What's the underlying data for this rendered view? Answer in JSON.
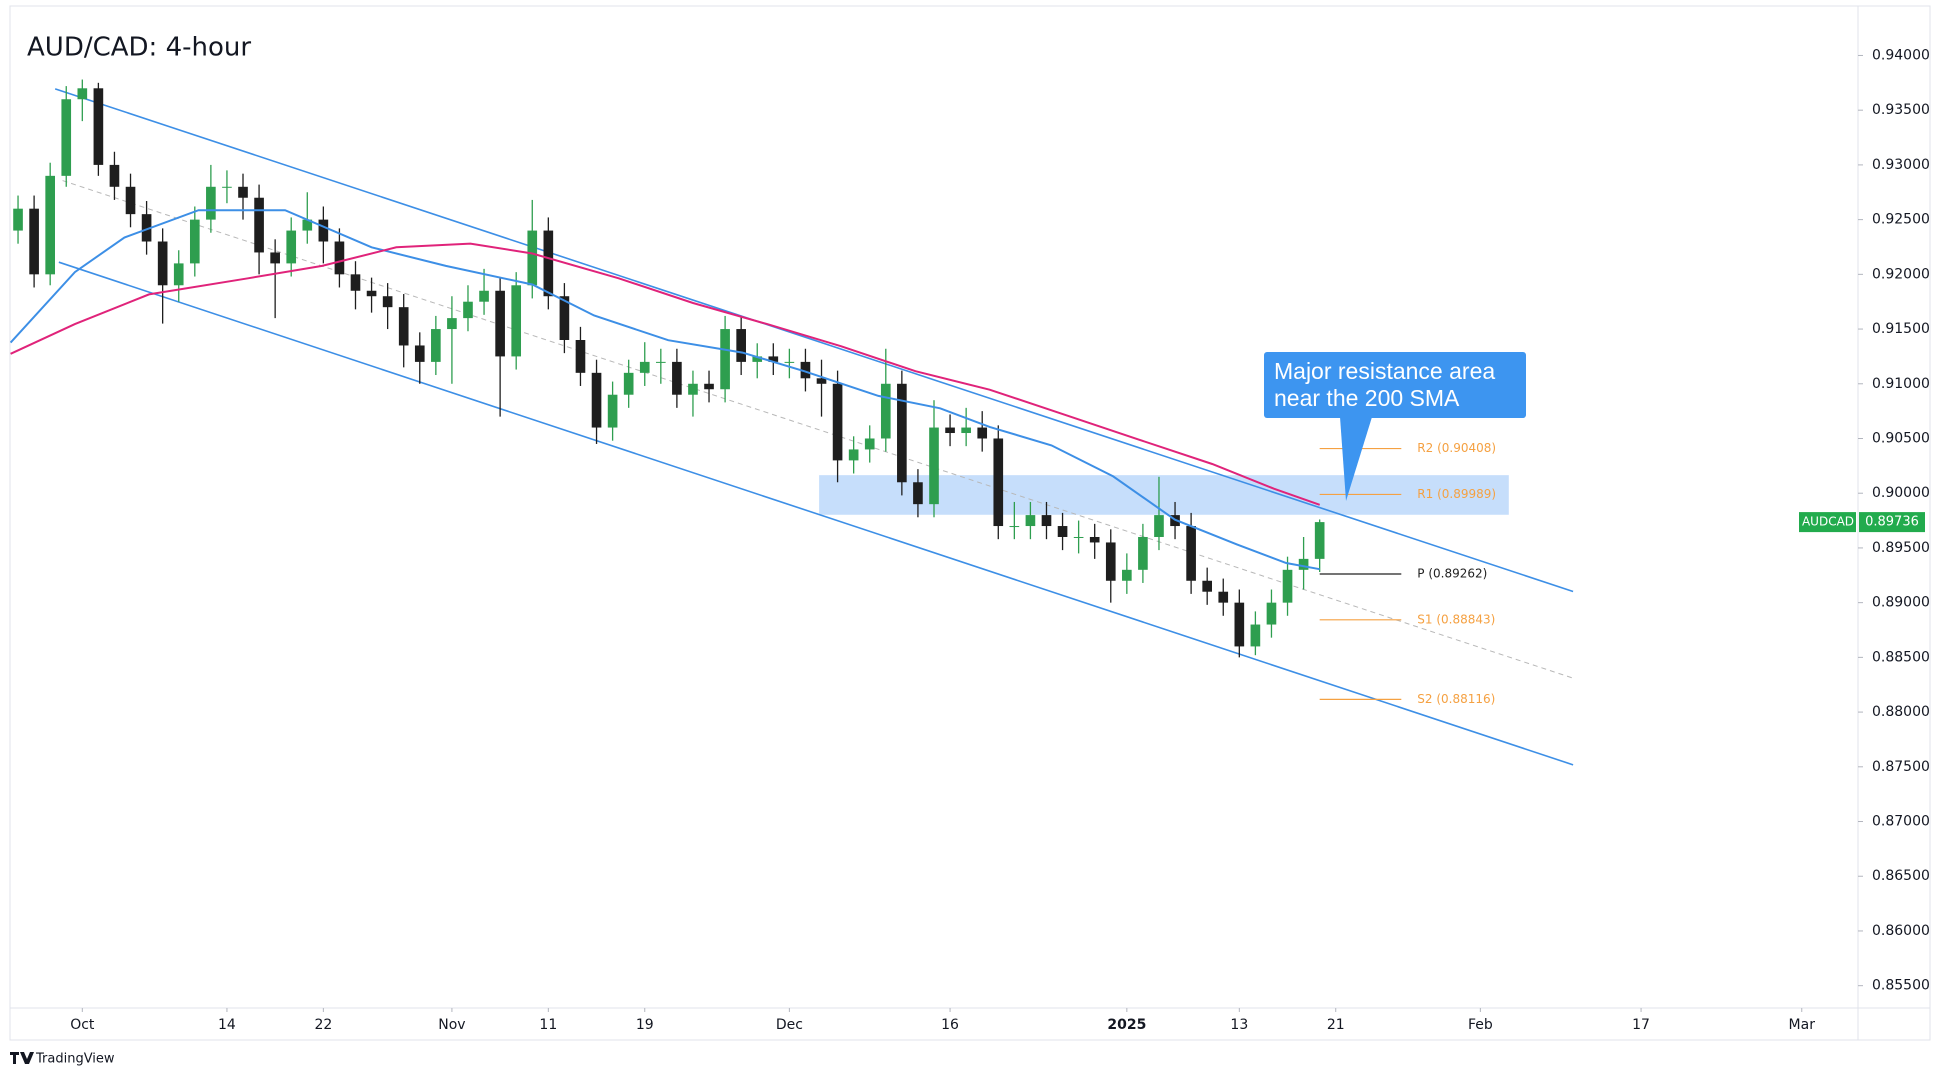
{
  "chart_data": {
    "type": "candlestick",
    "title": "AUD/CAD: 4-hour",
    "x": [
      -4,
      -3,
      -2,
      -1,
      0,
      1,
      2,
      3,
      4,
      5,
      6,
      7,
      8,
      9,
      10,
      11,
      12,
      13,
      14,
      15,
      16,
      17,
      18,
      19,
      20,
      21,
      22,
      23,
      24,
      25,
      26,
      27,
      28,
      29,
      30,
      31,
      32,
      33,
      34,
      35,
      36,
      37,
      38,
      39,
      40,
      41,
      42,
      43,
      44,
      45,
      46,
      47,
      48,
      49,
      50,
      51,
      52,
      53,
      54,
      55,
      56,
      57,
      58,
      59,
      60,
      61,
      62,
      63,
      64,
      65,
      66,
      67,
      68,
      69,
      70,
      71,
      72,
      73,
      74,
      75,
      76,
      77
    ],
    "open": [
      0.924,
      0.926,
      0.92,
      0.929,
      0.936,
      0.937,
      0.93,
      0.928,
      0.9255,
      0.923,
      0.919,
      0.921,
      0.925,
      0.928,
      0.928,
      0.927,
      0.922,
      0.921,
      0.924,
      0.925,
      0.923,
      0.92,
      0.9185,
      0.918,
      0.917,
      0.9135,
      0.912,
      0.915,
      0.916,
      0.9175,
      0.9185,
      0.9125,
      0.919,
      0.924,
      0.918,
      0.914,
      0.911,
      0.906,
      0.909,
      0.911,
      0.912,
      0.912,
      0.909,
      0.91,
      0.9095,
      0.915,
      0.912,
      0.9125,
      0.912,
      0.912,
      0.9105,
      0.91,
      0.903,
      0.904,
      0.905,
      0.91,
      0.901,
      0.899,
      0.906,
      0.9055,
      0.906,
      0.905,
      0.897,
      0.897,
      0.898,
      0.897,
      0.896,
      0.896,
      0.8955,
      0.892,
      0.893,
      0.896,
      0.898,
      0.897,
      0.892,
      0.891,
      0.89,
      0.886,
      0.888,
      0.89,
      0.893,
      0.894
    ],
    "high": [
      0.9272,
      0.9272,
      0.9302,
      0.9372,
      0.9378,
      0.9375,
      0.9312,
      0.9292,
      0.9267,
      0.9242,
      0.9222,
      0.9262,
      0.93,
      0.9295,
      0.9292,
      0.9282,
      0.9232,
      0.9252,
      0.9275,
      0.9262,
      0.9242,
      0.9212,
      0.9197,
      0.9192,
      0.9182,
      0.9147,
      0.9162,
      0.918,
      0.919,
      0.9205,
      0.9197,
      0.9202,
      0.9268,
      0.9252,
      0.9192,
      0.9152,
      0.9122,
      0.9102,
      0.9122,
      0.9138,
      0.9132,
      0.9132,
      0.9112,
      0.9112,
      0.9162,
      0.9162,
      0.9137,
      0.9137,
      0.9132,
      0.9132,
      0.9122,
      0.9112,
      0.9052,
      0.9062,
      0.9132,
      0.9112,
      0.9022,
      0.9085,
      0.9072,
      0.9078,
      0.9075,
      0.9062,
      0.8992,
      0.8992,
      0.8992,
      0.8982,
      0.8975,
      0.8972,
      0.8967,
      0.8945,
      0.8972,
      0.9015,
      0.8992,
      0.8982,
      0.8932,
      0.8922,
      0.8912,
      0.8892,
      0.8912,
      0.8942,
      0.896,
      0.8976
    ],
    "low": [
      0.9228,
      0.9188,
      0.919,
      0.928,
      0.934,
      0.929,
      0.9268,
      0.9243,
      0.9218,
      0.9155,
      0.9175,
      0.9198,
      0.9238,
      0.9265,
      0.925,
      0.92,
      0.916,
      0.9198,
      0.9228,
      0.921,
      0.9188,
      0.9168,
      0.9165,
      0.915,
      0.9115,
      0.91,
      0.9108,
      0.91,
      0.9148,
      0.9163,
      0.907,
      0.9113,
      0.9178,
      0.9168,
      0.9128,
      0.9098,
      0.9045,
      0.9048,
      0.9078,
      0.9098,
      0.91,
      0.9078,
      0.907,
      0.9083,
      0.9083,
      0.9108,
      0.9105,
      0.9108,
      0.9105,
      0.9093,
      0.907,
      0.901,
      0.9018,
      0.9028,
      0.9038,
      0.8998,
      0.8978,
      0.8978,
      0.9043,
      0.9043,
      0.9038,
      0.8958,
      0.8958,
      0.8958,
      0.8958,
      0.8948,
      0.8945,
      0.894,
      0.89,
      0.8908,
      0.8918,
      0.8948,
      0.8958,
      0.8908,
      0.8898,
      0.8888,
      0.885,
      0.8852,
      0.8868,
      0.8888,
      0.8912,
      0.8928
    ],
    "close": [
      0.926,
      0.92,
      0.929,
      0.936,
      0.937,
      0.93,
      0.928,
      0.9255,
      0.923,
      0.919,
      0.921,
      0.925,
      0.928,
      0.928,
      0.927,
      0.922,
      0.921,
      0.924,
      0.925,
      0.923,
      0.92,
      0.9185,
      0.918,
      0.917,
      0.9135,
      0.912,
      0.915,
      0.916,
      0.9175,
      0.9185,
      0.9125,
      0.919,
      0.924,
      0.918,
      0.914,
      0.911,
      0.906,
      0.909,
      0.911,
      0.912,
      0.912,
      0.909,
      0.91,
      0.9095,
      0.915,
      0.912,
      0.9125,
      0.912,
      0.912,
      0.9105,
      0.91,
      0.903,
      0.904,
      0.905,
      0.91,
      0.901,
      0.899,
      0.906,
      0.9055,
      0.906,
      0.905,
      0.897,
      0.897,
      0.898,
      0.897,
      0.896,
      0.896,
      0.8955,
      0.892,
      0.893,
      0.896,
      0.898,
      0.897,
      0.892,
      0.891,
      0.89,
      0.886,
      0.888,
      0.89,
      0.893,
      0.894,
      0.89736
    ],
    "up_color": "#2e9e4f",
    "down_color": "#1e1e1e",
    "xlim": [
      -4.5,
      110.5
    ],
    "xticks": [
      {
        "value": 0,
        "label": "Oct"
      },
      {
        "value": 9,
        "label": "14"
      },
      {
        "value": 15,
        "label": "22"
      },
      {
        "value": 23,
        "label": "Nov"
      },
      {
        "value": 29,
        "label": "11"
      },
      {
        "value": 35,
        "label": "19"
      },
      {
        "value": 44,
        "label": "Dec"
      },
      {
        "value": 54,
        "label": "16"
      },
      {
        "value": 65,
        "label": "2025",
        "bold": true
      },
      {
        "value": 72,
        "label": "13"
      },
      {
        "value": 78,
        "label": "21"
      },
      {
        "value": 87,
        "label": "Feb"
      },
      {
        "value": 97,
        "label": "17"
      },
      {
        "value": 107,
        "label": "Mar"
      }
    ],
    "ylim": [
      0.85296,
      0.94452
    ],
    "yticks": [
      {
        "value": 0.855,
        "label": "0.85500"
      },
      {
        "value": 0.86,
        "label": "0.86000"
      },
      {
        "value": 0.865,
        "label": "0.86500"
      },
      {
        "value": 0.87,
        "label": "0.87000"
      },
      {
        "value": 0.875,
        "label": "0.87500"
      },
      {
        "value": 0.88,
        "label": "0.88000"
      },
      {
        "value": 0.885,
        "label": "0.88500"
      },
      {
        "value": 0.89,
        "label": "0.89000"
      },
      {
        "value": 0.895,
        "label": "0.89500"
      },
      {
        "value": 0.9,
        "label": "0.90000"
      },
      {
        "value": 0.905,
        "label": "0.90500"
      },
      {
        "value": 0.91,
        "label": "0.91000"
      },
      {
        "value": 0.915,
        "label": "0.91500"
      },
      {
        "value": 0.92,
        "label": "0.92000"
      },
      {
        "value": 0.925,
        "label": "0.92500"
      },
      {
        "value": 0.93,
        "label": "0.93000"
      },
      {
        "value": 0.935,
        "label": "0.93500"
      },
      {
        "value": 0.94,
        "label": "0.94000"
      }
    ],
    "overlays": [
      {
        "color": "#3d8fe6",
        "x": [
          -4.46,
          -0.46,
          2.62,
          7.23,
          12.62,
          18,
          22.62,
          28,
          31.85,
          36.46,
          41.08,
          44.92,
          49.54,
          53.38,
          56.46,
          60.31,
          64.15,
          68,
          71.85,
          74.92,
          77
        ],
        "values": [
          0.91376,
          0.9202,
          0.92337,
          0.92586,
          0.92586,
          0.92247,
          0.92077,
          0.91907,
          0.91624,
          0.91398,
          0.91285,
          0.91115,
          0.90889,
          0.90776,
          0.90606,
          0.90437,
          0.90154,
          0.89758,
          0.89532,
          0.89362,
          0.89306
        ]
      },
      {
        "color": "#e0237a",
        "x": [
          -4.46,
          -0.46,
          4.15,
          10.31,
          14.92,
          19.54,
          24.15,
          28,
          33.38,
          38,
          42.62,
          47.23,
          51.85,
          56.46,
          61.08,
          65.69,
          70.31,
          74.15,
          77
        ],
        "values": [
          0.91274,
          0.91545,
          0.91817,
          0.91964,
          0.92077,
          0.92247,
          0.92281,
          0.9219,
          0.91964,
          0.91738,
          0.91545,
          0.91342,
          0.91115,
          0.90946,
          0.9072,
          0.90493,
          0.90267,
          0.90041,
          0.89894
        ]
      }
    ],
    "trendlines": [
      {
        "color": "#3d8fe6",
        "dashed": false,
        "x": [
          -1.69,
          92.77
        ],
        "values": [
          0.93695,
          0.89102
        ]
      },
      {
        "color": "#3d8fe6",
        "dashed": false,
        "x": [
          -1.46,
          92.77
        ],
        "values": [
          0.92111,
          0.87518
        ]
      },
      {
        "color": "#b8b8b8",
        "dashed": true,
        "x": [
          -1.23,
          92.77
        ],
        "values": [
          0.92857,
          0.8831
        ]
      }
    ],
    "zone": {
      "color": "#bcd8fa",
      "x": [
        45.85,
        88.77
      ],
      "y": [
        0.89803,
        0.90165
      ]
    },
    "levels": [
      {
        "label": "R2 (0.90408)",
        "value": 0.90408,
        "color": "#f5a142",
        "x": [
          77,
          82.08
        ]
      },
      {
        "label": "R1 (0.89989)",
        "value": 0.89989,
        "color": "#f5a142",
        "x": [
          77,
          82.08
        ]
      },
      {
        "label": "P (0.89262)",
        "value": 0.89262,
        "color": "#222222",
        "x": [
          77,
          82.08
        ]
      },
      {
        "label": "S1 (0.88843)",
        "value": 0.88843,
        "color": "#f5a142",
        "x": [
          77,
          82.08
        ]
      },
      {
        "label": "S2 (0.88116)",
        "value": 0.88116,
        "color": "#f5a142",
        "x": [
          77,
          82.08
        ]
      }
    ],
    "annotation": "Major resistance area near the 200 SMA",
    "last_price": {
      "symbol": "AUDCAD",
      "value": 0.89736,
      "color": "#22ab4d"
    }
  },
  "footer": {
    "brand": "TradingView"
  }
}
